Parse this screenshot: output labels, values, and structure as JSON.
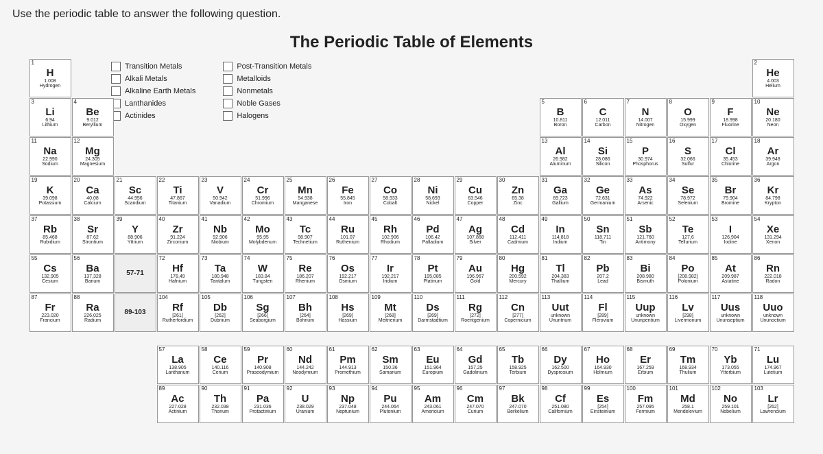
{
  "question": "Use the periodic table to answer the following question.",
  "title": "The Periodic Table of Elements",
  "legend": [
    {
      "label": "Transition Metals",
      "color": "#ffffff"
    },
    {
      "label": "Post-Transition Metals",
      "color": "#ffffff"
    },
    {
      "label": "Alkali Metals",
      "color": "#ffffff"
    },
    {
      "label": "Metalloids",
      "color": "#ffffff"
    },
    {
      "label": "Alkaline Earth Metals",
      "color": "#ffffff"
    },
    {
      "label": "Nonmetals",
      "color": "#ffffff"
    },
    {
      "label": "Lanthanides",
      "color": "#ffffff"
    },
    {
      "label": "Noble Gases",
      "color": "#ffffff"
    },
    {
      "label": "Actinides",
      "color": "#ffffff"
    },
    {
      "label": "Halogens",
      "color": "#ffffff"
    }
  ],
  "categories": {
    "alkali": "#ffffff",
    "alkaline": "#ffffff",
    "transition": "#ffffff",
    "post": "#ffffff",
    "metalloid": "#ffffff",
    "nonmetal": "#ffffff",
    "halogen": "#ffffff",
    "noble": "#ffffff",
    "lanthanide": "#ffffff",
    "actinide": "#ffffff"
  },
  "lanthanide_range": "57-71",
  "actinide_range": "89-103",
  "elements": [
    {
      "n": 1,
      "s": "H",
      "m": "1.008",
      "name": "Hydrogen",
      "r": 1,
      "c": 1,
      "cat": "nonmetal"
    },
    {
      "n": 2,
      "s": "He",
      "m": "4.003",
      "name": "Helium",
      "r": 1,
      "c": 18,
      "cat": "noble"
    },
    {
      "n": 3,
      "s": "Li",
      "m": "6.94",
      "name": "Lithium",
      "r": 2,
      "c": 1,
      "cat": "alkali"
    },
    {
      "n": 4,
      "s": "Be",
      "m": "9.012",
      "name": "Beryllium",
      "r": 2,
      "c": 2,
      "cat": "alkaline"
    },
    {
      "n": 5,
      "s": "B",
      "m": "10.811",
      "name": "Boron",
      "r": 2,
      "c": 13,
      "cat": "metalloid"
    },
    {
      "n": 6,
      "s": "C",
      "m": "12.011",
      "name": "Carbon",
      "r": 2,
      "c": 14,
      "cat": "nonmetal"
    },
    {
      "n": 7,
      "s": "N",
      "m": "14.007",
      "name": "Nitrogen",
      "r": 2,
      "c": 15,
      "cat": "nonmetal"
    },
    {
      "n": 8,
      "s": "O",
      "m": "15.999",
      "name": "Oxygen",
      "r": 2,
      "c": 16,
      "cat": "nonmetal"
    },
    {
      "n": 9,
      "s": "F",
      "m": "18.998",
      "name": "Fluorine",
      "r": 2,
      "c": 17,
      "cat": "halogen"
    },
    {
      "n": 10,
      "s": "Ne",
      "m": "20.180",
      "name": "Neon",
      "r": 2,
      "c": 18,
      "cat": "noble"
    },
    {
      "n": 11,
      "s": "Na",
      "m": "22.990",
      "name": "Sodium",
      "r": 3,
      "c": 1,
      "cat": "alkali"
    },
    {
      "n": 12,
      "s": "Mg",
      "m": "24.305",
      "name": "Magnesium",
      "r": 3,
      "c": 2,
      "cat": "alkaline"
    },
    {
      "n": 13,
      "s": "Al",
      "m": "26.982",
      "name": "Aluminum",
      "r": 3,
      "c": 13,
      "cat": "post"
    },
    {
      "n": 14,
      "s": "Si",
      "m": "28.086",
      "name": "Silicon",
      "r": 3,
      "c": 14,
      "cat": "metalloid"
    },
    {
      "n": 15,
      "s": "P",
      "m": "30.974",
      "name": "Phosphorus",
      "r": 3,
      "c": 15,
      "cat": "nonmetal"
    },
    {
      "n": 16,
      "s": "S",
      "m": "32.066",
      "name": "Sulfur",
      "r": 3,
      "c": 16,
      "cat": "nonmetal"
    },
    {
      "n": 17,
      "s": "Cl",
      "m": "35.453",
      "name": "Chlorine",
      "r": 3,
      "c": 17,
      "cat": "halogen"
    },
    {
      "n": 18,
      "s": "Ar",
      "m": "39.948",
      "name": "Argon",
      "r": 3,
      "c": 18,
      "cat": "noble"
    },
    {
      "n": 19,
      "s": "K",
      "m": "39.098",
      "name": "Potassium",
      "r": 4,
      "c": 1,
      "cat": "alkali"
    },
    {
      "n": 20,
      "s": "Ca",
      "m": "40.08",
      "name": "Calcium",
      "r": 4,
      "c": 2,
      "cat": "alkaline"
    },
    {
      "n": 21,
      "s": "Sc",
      "m": "44.956",
      "name": "Scandium",
      "r": 4,
      "c": 3,
      "cat": "transition"
    },
    {
      "n": 22,
      "s": "Ti",
      "m": "47.867",
      "name": "Titanium",
      "r": 4,
      "c": 4,
      "cat": "transition"
    },
    {
      "n": 23,
      "s": "V",
      "m": "50.942",
      "name": "Vanadium",
      "r": 4,
      "c": 5,
      "cat": "transition"
    },
    {
      "n": 24,
      "s": "Cr",
      "m": "51.996",
      "name": "Chromium",
      "r": 4,
      "c": 6,
      "cat": "transition"
    },
    {
      "n": 25,
      "s": "Mn",
      "m": "54.938",
      "name": "Manganese",
      "r": 4,
      "c": 7,
      "cat": "transition"
    },
    {
      "n": 26,
      "s": "Fe",
      "m": "55.845",
      "name": "Iron",
      "r": 4,
      "c": 8,
      "cat": "transition"
    },
    {
      "n": 27,
      "s": "Co",
      "m": "58.933",
      "name": "Cobalt",
      "r": 4,
      "c": 9,
      "cat": "transition"
    },
    {
      "n": 28,
      "s": "Ni",
      "m": "58.693",
      "name": "Nickel",
      "r": 4,
      "c": 10,
      "cat": "transition"
    },
    {
      "n": 29,
      "s": "Cu",
      "m": "63.546",
      "name": "Copper",
      "r": 4,
      "c": 11,
      "cat": "transition"
    },
    {
      "n": 30,
      "s": "Zn",
      "m": "65.38",
      "name": "Zinc",
      "r": 4,
      "c": 12,
      "cat": "transition"
    },
    {
      "n": 31,
      "s": "Ga",
      "m": "69.723",
      "name": "Gallium",
      "r": 4,
      "c": 13,
      "cat": "post"
    },
    {
      "n": 32,
      "s": "Ge",
      "m": "72.631",
      "name": "Germanium",
      "r": 4,
      "c": 14,
      "cat": "metalloid"
    },
    {
      "n": 33,
      "s": "As",
      "m": "74.922",
      "name": "Arsenic",
      "r": 4,
      "c": 15,
      "cat": "metalloid"
    },
    {
      "n": 34,
      "s": "Se",
      "m": "78.972",
      "name": "Selenium",
      "r": 4,
      "c": 16,
      "cat": "nonmetal"
    },
    {
      "n": 35,
      "s": "Br",
      "m": "79.904",
      "name": "Bromine",
      "r": 4,
      "c": 17,
      "cat": "halogen"
    },
    {
      "n": 36,
      "s": "Kr",
      "m": "84.798",
      "name": "Krypton",
      "r": 4,
      "c": 18,
      "cat": "noble"
    },
    {
      "n": 37,
      "s": "Rb",
      "m": "85.468",
      "name": "Rubidium",
      "r": 5,
      "c": 1,
      "cat": "alkali"
    },
    {
      "n": 38,
      "s": "Sr",
      "m": "87.62",
      "name": "Strontium",
      "r": 5,
      "c": 2,
      "cat": "alkaline"
    },
    {
      "n": 39,
      "s": "Y",
      "m": "88.906",
      "name": "Yttrium",
      "r": 5,
      "c": 3,
      "cat": "transition"
    },
    {
      "n": 40,
      "s": "Zr",
      "m": "91.224",
      "name": "Zirconium",
      "r": 5,
      "c": 4,
      "cat": "transition"
    },
    {
      "n": 41,
      "s": "Nb",
      "m": "92.906",
      "name": "Niobium",
      "r": 5,
      "c": 5,
      "cat": "transition"
    },
    {
      "n": 42,
      "s": "Mo",
      "m": "95.95",
      "name": "Molybdenum",
      "r": 5,
      "c": 6,
      "cat": "transition"
    },
    {
      "n": 43,
      "s": "Tc",
      "m": "98.907",
      "name": "Technetium",
      "r": 5,
      "c": 7,
      "cat": "transition"
    },
    {
      "n": 44,
      "s": "Ru",
      "m": "101.07",
      "name": "Ruthenium",
      "r": 5,
      "c": 8,
      "cat": "transition"
    },
    {
      "n": 45,
      "s": "Rh",
      "m": "102.906",
      "name": "Rhodium",
      "r": 5,
      "c": 9,
      "cat": "transition"
    },
    {
      "n": 46,
      "s": "Pd",
      "m": "106.42",
      "name": "Palladium",
      "r": 5,
      "c": 10,
      "cat": "transition"
    },
    {
      "n": 47,
      "s": "Ag",
      "m": "107.868",
      "name": "Silver",
      "r": 5,
      "c": 11,
      "cat": "transition"
    },
    {
      "n": 48,
      "s": "Cd",
      "m": "112.411",
      "name": "Cadmium",
      "r": 5,
      "c": 12,
      "cat": "transition"
    },
    {
      "n": 49,
      "s": "In",
      "m": "114.818",
      "name": "Indium",
      "r": 5,
      "c": 13,
      "cat": "post"
    },
    {
      "n": 50,
      "s": "Sn",
      "m": "118.711",
      "name": "Tin",
      "r": 5,
      "c": 14,
      "cat": "post"
    },
    {
      "n": 51,
      "s": "Sb",
      "m": "121.760",
      "name": "Antimony",
      "r": 5,
      "c": 15,
      "cat": "metalloid"
    },
    {
      "n": 52,
      "s": "Te",
      "m": "127.6",
      "name": "Tellurium",
      "r": 5,
      "c": 16,
      "cat": "metalloid"
    },
    {
      "n": 53,
      "s": "I",
      "m": "126.904",
      "name": "Iodine",
      "r": 5,
      "c": 17,
      "cat": "halogen"
    },
    {
      "n": 54,
      "s": "Xe",
      "m": "131.294",
      "name": "Xenon",
      "r": 5,
      "c": 18,
      "cat": "noble"
    },
    {
      "n": 55,
      "s": "Cs",
      "m": "132.905",
      "name": "Cesium",
      "r": 6,
      "c": 1,
      "cat": "alkali"
    },
    {
      "n": 56,
      "s": "Ba",
      "m": "137.328",
      "name": "Barium",
      "r": 6,
      "c": 2,
      "cat": "alkaline"
    },
    {
      "n": 72,
      "s": "Hf",
      "m": "178.49",
      "name": "Hafnium",
      "r": 6,
      "c": 4,
      "cat": "transition"
    },
    {
      "n": 73,
      "s": "Ta",
      "m": "180.948",
      "name": "Tantalum",
      "r": 6,
      "c": 5,
      "cat": "transition"
    },
    {
      "n": 74,
      "s": "W",
      "m": "183.84",
      "name": "Tungsten",
      "r": 6,
      "c": 6,
      "cat": "transition"
    },
    {
      "n": 75,
      "s": "Re",
      "m": "186.207",
      "name": "Rhenium",
      "r": 6,
      "c": 7,
      "cat": "transition"
    },
    {
      "n": 76,
      "s": "Os",
      "m": "192.217",
      "name": "Osmium",
      "r": 6,
      "c": 8,
      "cat": "transition"
    },
    {
      "n": 77,
      "s": "Ir",
      "m": "192.217",
      "name": "Iridium",
      "r": 6,
      "c": 9,
      "cat": "transition"
    },
    {
      "n": 78,
      "s": "Pt",
      "m": "195.085",
      "name": "Platinum",
      "r": 6,
      "c": 10,
      "cat": "transition"
    },
    {
      "n": 79,
      "s": "Au",
      "m": "196.967",
      "name": "Gold",
      "r": 6,
      "c": 11,
      "cat": "transition"
    },
    {
      "n": 80,
      "s": "Hg",
      "m": "200.592",
      "name": "Mercury",
      "r": 6,
      "c": 12,
      "cat": "transition"
    },
    {
      "n": 81,
      "s": "Tl",
      "m": "204.383",
      "name": "Thallium",
      "r": 6,
      "c": 13,
      "cat": "post"
    },
    {
      "n": 82,
      "s": "Pb",
      "m": "207.2",
      "name": "Lead",
      "r": 6,
      "c": 14,
      "cat": "post"
    },
    {
      "n": 83,
      "s": "Bi",
      "m": "208.980",
      "name": "Bismuth",
      "r": 6,
      "c": 15,
      "cat": "post"
    },
    {
      "n": 84,
      "s": "Po",
      "m": "[208.982]",
      "name": "Polonium",
      "r": 6,
      "c": 16,
      "cat": "metalloid"
    },
    {
      "n": 85,
      "s": "At",
      "m": "209.987",
      "name": "Astatine",
      "r": 6,
      "c": 17,
      "cat": "halogen"
    },
    {
      "n": 86,
      "s": "Rn",
      "m": "222.018",
      "name": "Radon",
      "r": 6,
      "c": 18,
      "cat": "noble"
    },
    {
      "n": 87,
      "s": "Fr",
      "m": "223.020",
      "name": "Francium",
      "r": 7,
      "c": 1,
      "cat": "alkali"
    },
    {
      "n": 88,
      "s": "Ra",
      "m": "226.025",
      "name": "Radium",
      "r": 7,
      "c": 2,
      "cat": "alkaline"
    },
    {
      "n": 104,
      "s": "Rf",
      "m": "[261]",
      "name": "Rutherfordium",
      "r": 7,
      "c": 4,
      "cat": "transition"
    },
    {
      "n": 105,
      "s": "Db",
      "m": "[262]",
      "name": "Dubnium",
      "r": 7,
      "c": 5,
      "cat": "transition"
    },
    {
      "n": 106,
      "s": "Sg",
      "m": "[266]",
      "name": "Seaborgium",
      "r": 7,
      "c": 6,
      "cat": "transition"
    },
    {
      "n": 107,
      "s": "Bh",
      "m": "[264]",
      "name": "Bohrium",
      "r": 7,
      "c": 7,
      "cat": "transition"
    },
    {
      "n": 108,
      "s": "Hs",
      "m": "[269]",
      "name": "Hassium",
      "r": 7,
      "c": 8,
      "cat": "transition"
    },
    {
      "n": 109,
      "s": "Mt",
      "m": "[268]",
      "name": "Meitnerium",
      "r": 7,
      "c": 9,
      "cat": "transition"
    },
    {
      "n": 110,
      "s": "Ds",
      "m": "[269]",
      "name": "Darmstadtium",
      "r": 7,
      "c": 10,
      "cat": "transition"
    },
    {
      "n": 111,
      "s": "Rg",
      "m": "[272]",
      "name": "Roentgenium",
      "r": 7,
      "c": 11,
      "cat": "transition"
    },
    {
      "n": 112,
      "s": "Cn",
      "m": "[277]",
      "name": "Copernicium",
      "r": 7,
      "c": 12,
      "cat": "transition"
    },
    {
      "n": 113,
      "s": "Uut",
      "m": "unknown",
      "name": "Ununtrium",
      "r": 7,
      "c": 13,
      "cat": "post"
    },
    {
      "n": 114,
      "s": "Fl",
      "m": "[289]",
      "name": "Flerovium",
      "r": 7,
      "c": 14,
      "cat": "post"
    },
    {
      "n": 115,
      "s": "Uup",
      "m": "unknown",
      "name": "Ununpentium",
      "r": 7,
      "c": 15,
      "cat": "post"
    },
    {
      "n": 116,
      "s": "Lv",
      "m": "[298]",
      "name": "Livermorium",
      "r": 7,
      "c": 16,
      "cat": "post"
    },
    {
      "n": 117,
      "s": "Uus",
      "m": "unknown",
      "name": "Ununseptium",
      "r": 7,
      "c": 17,
      "cat": "halogen"
    },
    {
      "n": 118,
      "s": "Uuo",
      "m": "unknown",
      "name": "Ununoctium",
      "r": 7,
      "c": 18,
      "cat": "noble"
    },
    {
      "n": 57,
      "s": "La",
      "m": "138.905",
      "name": "Lanthanum",
      "r": 9,
      "c": 4,
      "cat": "lanthanide"
    },
    {
      "n": 58,
      "s": "Ce",
      "m": "140.116",
      "name": "Cerium",
      "r": 9,
      "c": 5,
      "cat": "lanthanide"
    },
    {
      "n": 59,
      "s": "Pr",
      "m": "140.908",
      "name": "Praseodymium",
      "r": 9,
      "c": 6,
      "cat": "lanthanide"
    },
    {
      "n": 60,
      "s": "Nd",
      "m": "144.242",
      "name": "Neodymium",
      "r": 9,
      "c": 7,
      "cat": "lanthanide"
    },
    {
      "n": 61,
      "s": "Pm",
      "m": "144.913",
      "name": "Promethium",
      "r": 9,
      "c": 8,
      "cat": "lanthanide"
    },
    {
      "n": 62,
      "s": "Sm",
      "m": "150.36",
      "name": "Samarium",
      "r": 9,
      "c": 9,
      "cat": "lanthanide"
    },
    {
      "n": 63,
      "s": "Eu",
      "m": "151.964",
      "name": "Europium",
      "r": 9,
      "c": 10,
      "cat": "lanthanide"
    },
    {
      "n": 64,
      "s": "Gd",
      "m": "157.25",
      "name": "Gadolinium",
      "r": 9,
      "c": 11,
      "cat": "lanthanide"
    },
    {
      "n": 65,
      "s": "Tb",
      "m": "158.925",
      "name": "Terbium",
      "r": 9,
      "c": 12,
      "cat": "lanthanide"
    },
    {
      "n": 66,
      "s": "Dy",
      "m": "162.500",
      "name": "Dysprosium",
      "r": 9,
      "c": 13,
      "cat": "lanthanide"
    },
    {
      "n": 67,
      "s": "Ho",
      "m": "164.930",
      "name": "Holmium",
      "r": 9,
      "c": 14,
      "cat": "lanthanide"
    },
    {
      "n": 68,
      "s": "Er",
      "m": "167.259",
      "name": "Erbium",
      "r": 9,
      "c": 15,
      "cat": "lanthanide"
    },
    {
      "n": 69,
      "s": "Tm",
      "m": "168.934",
      "name": "Thulium",
      "r": 9,
      "c": 16,
      "cat": "lanthanide"
    },
    {
      "n": 70,
      "s": "Yb",
      "m": "173.055",
      "name": "Ytterbium",
      "r": 9,
      "c": 17,
      "cat": "lanthanide"
    },
    {
      "n": 71,
      "s": "Lu",
      "m": "174.967",
      "name": "Lutetium",
      "r": 9,
      "c": 18,
      "cat": "lanthanide"
    },
    {
      "n": 89,
      "s": "Ac",
      "m": "227.028",
      "name": "Actinium",
      "r": 10,
      "c": 4,
      "cat": "actinide"
    },
    {
      "n": 90,
      "s": "Th",
      "m": "232.038",
      "name": "Thorium",
      "r": 10,
      "c": 5,
      "cat": "actinide"
    },
    {
      "n": 91,
      "s": "Pa",
      "m": "231.036",
      "name": "Protactinium",
      "r": 10,
      "c": 6,
      "cat": "actinide"
    },
    {
      "n": 92,
      "s": "U",
      "m": "238.029",
      "name": "Uranium",
      "r": 10,
      "c": 7,
      "cat": "actinide"
    },
    {
      "n": 93,
      "s": "Np",
      "m": "237.048",
      "name": "Neptunium",
      "r": 10,
      "c": 8,
      "cat": "actinide"
    },
    {
      "n": 94,
      "s": "Pu",
      "m": "244.064",
      "name": "Plutonium",
      "r": 10,
      "c": 9,
      "cat": "actinide"
    },
    {
      "n": 95,
      "s": "Am",
      "m": "243.061",
      "name": "Americium",
      "r": 10,
      "c": 10,
      "cat": "actinide"
    },
    {
      "n": 96,
      "s": "Cm",
      "m": "247.070",
      "name": "Curium",
      "r": 10,
      "c": 11,
      "cat": "actinide"
    },
    {
      "n": 97,
      "s": "Bk",
      "m": "247.070",
      "name": "Berkelium",
      "r": 10,
      "c": 12,
      "cat": "actinide"
    },
    {
      "n": 98,
      "s": "Cf",
      "m": "251.080",
      "name": "Californium",
      "r": 10,
      "c": 13,
      "cat": "actinide"
    },
    {
      "n": 99,
      "s": "Es",
      "m": "[254]",
      "name": "Einsteinium",
      "r": 10,
      "c": 14,
      "cat": "actinide"
    },
    {
      "n": 100,
      "s": "Fm",
      "m": "257.095",
      "name": "Fermium",
      "r": 10,
      "c": 15,
      "cat": "actinide"
    },
    {
      "n": 101,
      "s": "Md",
      "m": "258.1",
      "name": "Mendelevium",
      "r": 10,
      "c": 16,
      "cat": "actinide"
    },
    {
      "n": 102,
      "s": "No",
      "m": "259.101",
      "name": "Nobelium",
      "r": 10,
      "c": 17,
      "cat": "actinide"
    },
    {
      "n": 103,
      "s": "Lr",
      "m": "[262]",
      "name": "Lawrencium",
      "r": 10,
      "c": 18,
      "cat": "actinide"
    }
  ]
}
